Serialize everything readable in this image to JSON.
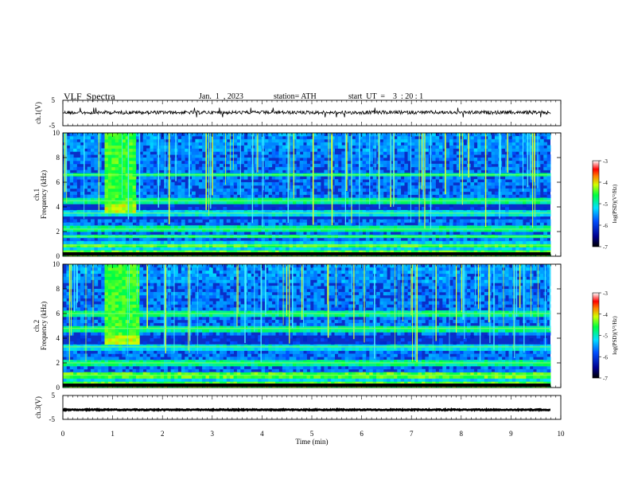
{
  "header": {
    "title": "VLF  Spectra",
    "date": "Jan.  1  , 2023",
    "station": "station= ATH",
    "start": "start  UT  =    3  : 20 : 1"
  },
  "chart_data": {
    "type": "heatmap",
    "title": "VLF  Spectra",
    "xlabel": "Time  (min)",
    "xlim": [
      0,
      10
    ],
    "xticks": [
      "0",
      "1",
      "2",
      "3",
      "4",
      "5",
      "6",
      "7",
      "8",
      "9",
      "10"
    ],
    "panels": [
      {
        "id": "ch1-waveform",
        "type": "line",
        "ylabel": "ch.1(V)",
        "ylim": [
          -5,
          5
        ],
        "yticks": [
          "5",
          "-5"
        ],
        "baseline": 0.2
      },
      {
        "id": "ch1-spectrogram",
        "type": "heatmap",
        "ylabel_top": "ch.1",
        "ylabel": "Frequency  (kHz)",
        "ylim": [
          0,
          10
        ],
        "yticks": [
          "0",
          "2",
          "4",
          "6",
          "8",
          "10"
        ],
        "colorbar": {
          "label": "log(PSD)(V²/Hz)",
          "range": [
            -7,
            -3
          ],
          "ticks": [
            "-3",
            "-4",
            "-5",
            "-6",
            "-7"
          ]
        },
        "features": [
          {
            "kind": "burst",
            "t_start": 0.85,
            "t_end": 1.5,
            "f_low": 3.6,
            "f_high": 10
          },
          {
            "kind": "band",
            "f": 0.3
          },
          {
            "kind": "band",
            "f": 0.9
          },
          {
            "kind": "band",
            "f": 1.6
          },
          {
            "kind": "band",
            "f": 2.2
          },
          {
            "kind": "band",
            "f": 3.5
          },
          {
            "kind": "band",
            "f": 4.5
          },
          {
            "kind": "band",
            "f": 6.6
          }
        ]
      },
      {
        "id": "ch2-spectrogram",
        "type": "heatmap",
        "ylabel_top": "ch.2",
        "ylabel": "Frequency  (kHz)",
        "ylim": [
          0,
          10
        ],
        "yticks": [
          "0",
          "2",
          "4",
          "6",
          "8",
          "10"
        ],
        "colorbar": {
          "label": "log(PSD)(V²/Hz)",
          "range": [
            -7,
            -3
          ],
          "ticks": [
            "-3",
            "-4",
            "-5",
            "-6",
            "-7"
          ]
        },
        "features": [
          {
            "kind": "burst",
            "t_start": 0.85,
            "t_end": 1.55,
            "f_low": 3.6,
            "f_high": 10
          },
          {
            "kind": "band",
            "f": 0.3
          },
          {
            "kind": "band",
            "f": 1.0
          },
          {
            "kind": "band",
            "f": 2.0
          },
          {
            "kind": "band",
            "f": 3.3
          },
          {
            "kind": "band",
            "f": 4.8
          },
          {
            "kind": "band",
            "f": 6.0
          }
        ]
      },
      {
        "id": "ch3-waveform",
        "type": "line",
        "ylabel": "ch.3(V)",
        "ylim": [
          -5,
          5
        ],
        "yticks": [
          "5",
          "-5"
        ],
        "baseline": -1.0
      }
    ]
  }
}
